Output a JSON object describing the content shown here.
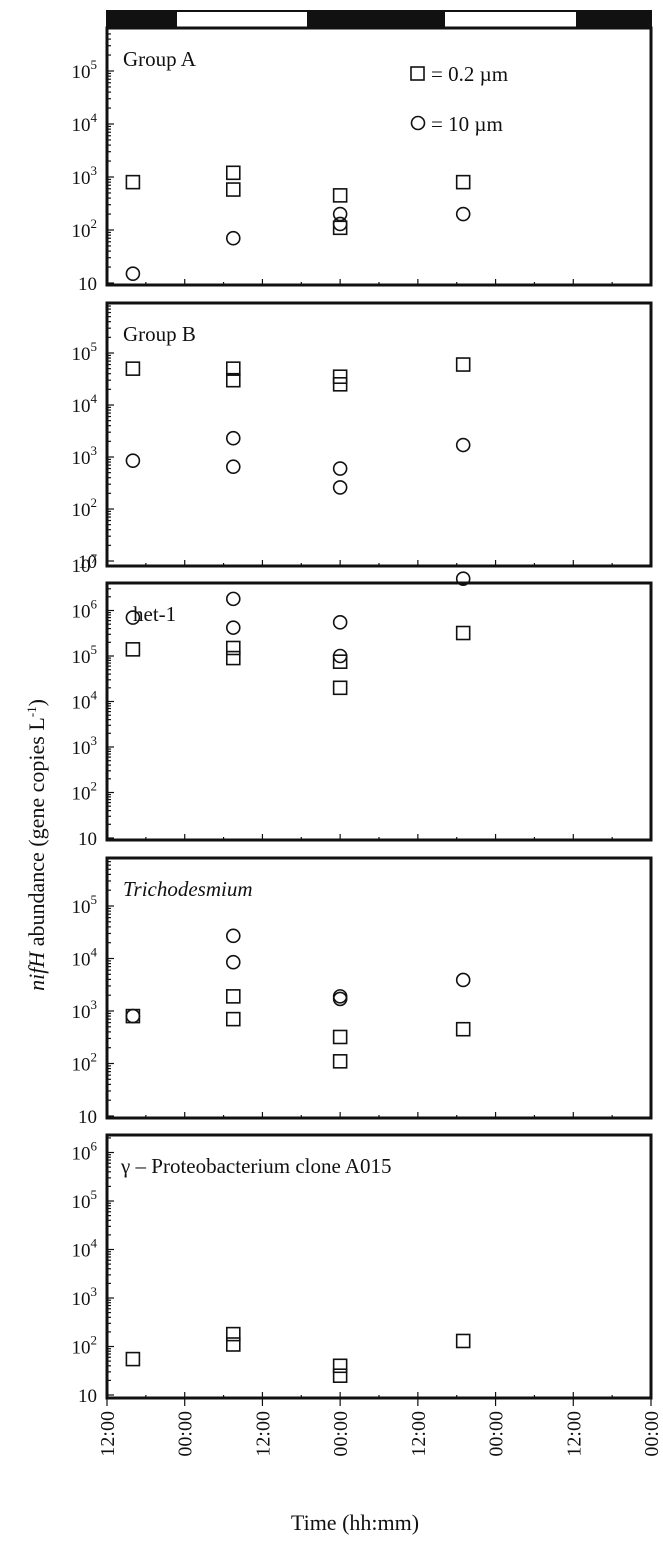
{
  "figure": {
    "ylabel_italic": "nifH",
    "ylabel_rest": " abundance (gene copies L",
    "ylabel_sup": "-1",
    "ylabel_close": ")",
    "xlabel": "Time (hh:mm)",
    "x_tick_labels": [
      "12:00",
      "00:00",
      "12:00",
      "00:00",
      "12:00",
      "00:00",
      "12:00",
      "00:00"
    ],
    "light_dark_bar": [
      "dark",
      "light",
      "dark",
      "light",
      "dark"
    ],
    "legend": {
      "square_label": "= 0.2 µm",
      "circle_label": "= 10 µm"
    },
    "colors": {
      "ink": "#111111",
      "bar_dark": "#111111",
      "bar_light": "#ffffff"
    }
  },
  "chart_data": [
    {
      "type": "scatter",
      "title": "Group A",
      "title_italic": false,
      "yscale": "log",
      "ylim": [
        10,
        1000000
      ],
      "ytick_labels": [
        {
          "base": "10",
          "exp": ""
        },
        {
          "base": "10",
          "exp": "2"
        },
        {
          "base": "10",
          "exp": "3"
        },
        {
          "base": "10",
          "exp": "4"
        },
        {
          "base": "10",
          "exp": "5"
        }
      ],
      "xlim": [
        0,
        84
      ],
      "x_unit": "hours from first 12:00 tick",
      "series": [
        {
          "name": "0.2 µm",
          "marker": "square",
          "x": [
            4,
            19.5,
            36,
            55
          ],
          "y": [
            800,
            1200,
            450,
            800
          ],
          "x_extra": [
            19.5,
            36
          ],
          "y_extra": [
            580,
            110
          ]
        },
        {
          "name": "10 µm",
          "marker": "circle",
          "x": [
            4,
            19.5,
            36,
            36,
            55
          ],
          "y": [
            15,
            70,
            200,
            130,
            200
          ]
        }
      ],
      "show_legend": true
    },
    {
      "type": "scatter",
      "title": "Group B",
      "title_italic": false,
      "yscale": "log",
      "ylim": [
        10,
        1000000
      ],
      "ytick_labels": [
        {
          "base": "10",
          "exp": ""
        },
        {
          "base": "10",
          "exp": "2"
        },
        {
          "base": "10",
          "exp": "3"
        },
        {
          "base": "10",
          "exp": "4"
        },
        {
          "base": "10",
          "exp": "5"
        }
      ],
      "xlim": [
        0,
        84
      ],
      "series": [
        {
          "name": "0.2 µm",
          "marker": "square",
          "x": [
            4,
            19.5,
            19.5,
            36,
            36,
            55
          ],
          "y": [
            50000,
            50000,
            30000,
            35000,
            25000,
            60000
          ]
        },
        {
          "name": "10 µm",
          "marker": "circle",
          "x": [
            4,
            19.5,
            19.5,
            36,
            36,
            55
          ],
          "y": [
            850,
            2300,
            650,
            600,
            260,
            1700
          ]
        }
      ],
      "show_legend": false
    },
    {
      "type": "scatter",
      "title": "het-1",
      "title_italic": false,
      "yscale": "log",
      "ylim": [
        10,
        30000000
      ],
      "ytick_labels": [
        {
          "base": "10",
          "exp": ""
        },
        {
          "base": "10",
          "exp": "2"
        },
        {
          "base": "10",
          "exp": "3"
        },
        {
          "base": "10",
          "exp": "4"
        },
        {
          "base": "10",
          "exp": "5"
        },
        {
          "base": "10",
          "exp": "6"
        },
        {
          "base": "10",
          "exp": "7"
        }
      ],
      "xlim": [
        0,
        84
      ],
      "series": [
        {
          "name": "0.2 µm",
          "marker": "square",
          "x": [
            4,
            19.5,
            19.5,
            36,
            36,
            55
          ],
          "y": [
            140000,
            150000,
            90000,
            75000,
            20000,
            320000
          ]
        },
        {
          "name": "10 µm",
          "marker": "circle",
          "x": [
            4,
            19.5,
            19.5,
            36,
            36,
            55
          ],
          "y": [
            700000,
            1800000,
            420000,
            550000,
            100000,
            5000000
          ]
        }
      ],
      "show_legend": false
    },
    {
      "type": "scatter",
      "title": "Trichodesmium",
      "title_italic": true,
      "yscale": "log",
      "ylim": [
        10,
        1000000
      ],
      "ytick_labels": [
        {
          "base": "10",
          "exp": ""
        },
        {
          "base": "10",
          "exp": "2"
        },
        {
          "base": "10",
          "exp": "3"
        },
        {
          "base": "10",
          "exp": "4"
        },
        {
          "base": "10",
          "exp": "5"
        }
      ],
      "xlim": [
        0,
        84
      ],
      "series": [
        {
          "name": "0.2 µm",
          "marker": "square",
          "x": [
            4,
            19.5,
            19.5,
            36,
            36,
            55
          ],
          "y": [
            800,
            1900,
            700,
            320,
            110,
            450
          ]
        },
        {
          "name": "10 µm",
          "marker": "circle",
          "x": [
            4,
            19.5,
            19.5,
            36,
            36,
            55
          ],
          "y": [
            800,
            27000,
            8500,
            1900,
            1700,
            3900
          ]
        }
      ],
      "show_legend": false
    },
    {
      "type": "scatter",
      "title": "γ – Proteobacterium clone A015",
      "title_italic": false,
      "yscale": "log",
      "ylim": [
        10,
        10000000
      ],
      "ytick_labels": [
        {
          "base": "10",
          "exp": ""
        },
        {
          "base": "10",
          "exp": "2"
        },
        {
          "base": "10",
          "exp": "3"
        },
        {
          "base": "10",
          "exp": "4"
        },
        {
          "base": "10",
          "exp": "5"
        },
        {
          "base": "10",
          "exp": "6"
        }
      ],
      "xlim": [
        0,
        84
      ],
      "series": [
        {
          "name": "0.2 µm",
          "marker": "square",
          "x": [
            4,
            19.5,
            19.5,
            36,
            36,
            55
          ],
          "y": [
            55,
            180,
            110,
            40,
            25,
            130
          ]
        }
      ],
      "show_legend": false
    }
  ]
}
